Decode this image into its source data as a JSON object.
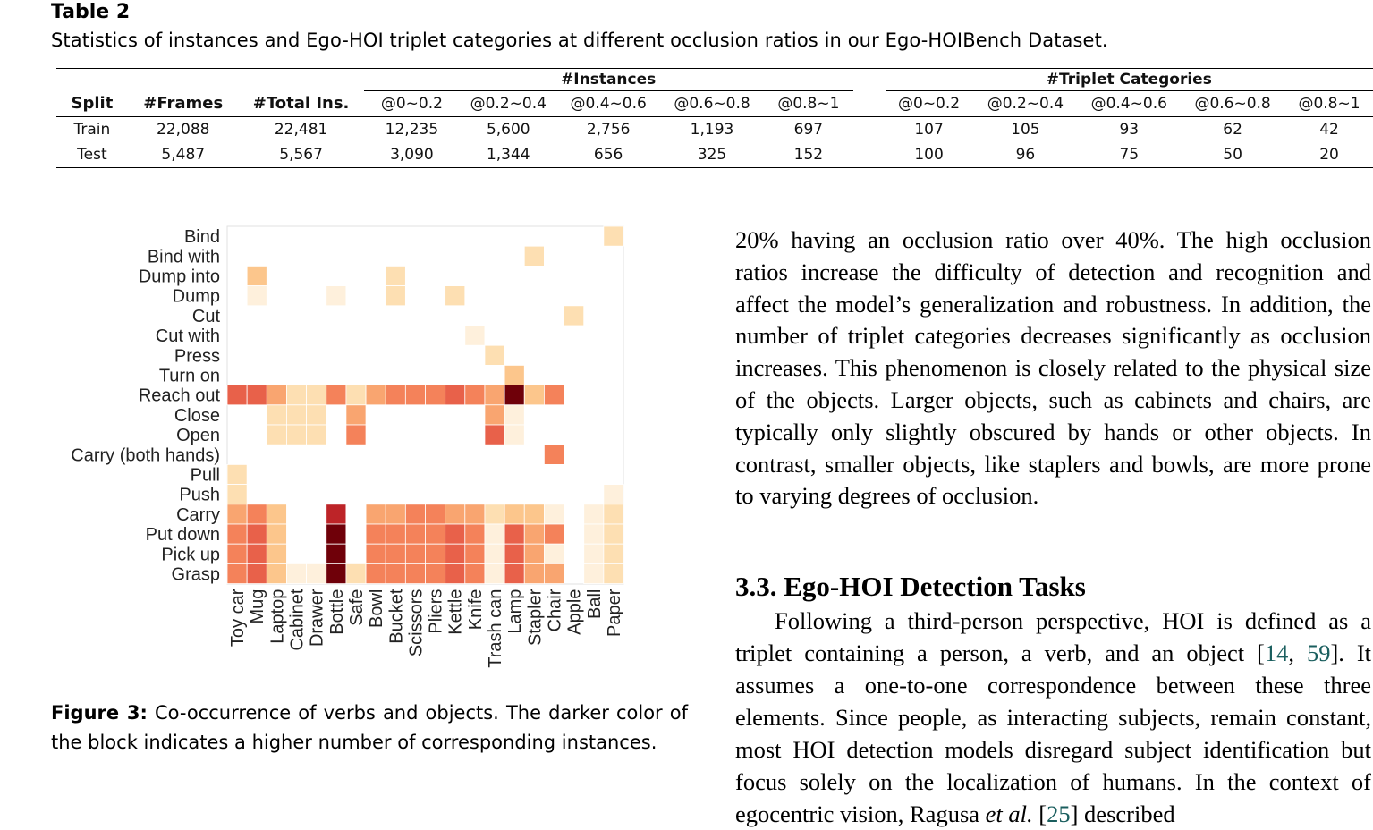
{
  "table": {
    "label": "Table 2",
    "caption": "Statistics of instances and Ego-HOI triplet categories at different occlusion ratios in our Ego-HOIBench Dataset.",
    "group_instances": "#Instances",
    "group_triplets": "#Triplet Categories",
    "col_split": "Split",
    "col_frames": "#Frames",
    "col_total": "#Total Ins.",
    "ratios": [
      "@0~0.2",
      "@0.2~0.4",
      "@0.4~0.6",
      "@0.6~0.8",
      "@0.8~1"
    ],
    "rows": [
      {
        "split": "Train",
        "frames": "22,088",
        "total": "22,481",
        "instances": [
          "12,235",
          "5,600",
          "2,756",
          "1,193",
          "697"
        ],
        "triplets": [
          "107",
          "105",
          "93",
          "62",
          "42"
        ]
      },
      {
        "split": "Test",
        "frames": "5,487",
        "total": "5,567",
        "instances": [
          "3,090",
          "1,344",
          "656",
          "325",
          "152"
        ],
        "triplets": [
          "100",
          "96",
          "75",
          "50",
          "20"
        ]
      }
    ]
  },
  "chart_data": {
    "type": "heatmap",
    "rows": [
      "Bind",
      "Bind with",
      "Dump into",
      "Dump",
      "Cut",
      "Cut with",
      "Press",
      "Turn on",
      "Reach out",
      "Close",
      "Open",
      "Carry (both hands)",
      "Pull",
      "Push",
      "Carry",
      "Put down",
      "Pick up",
      "Grasp"
    ],
    "columns": [
      "Toy car",
      "Mug",
      "Laptop",
      "Cabinet",
      "Drawer",
      "Bottle",
      "Safe",
      "Bowl",
      "Bucket",
      "Scissors",
      "Pliers",
      "Kettle",
      "Knife",
      "Trash can",
      "Lamp",
      "Stapler",
      "Chair",
      "Apple",
      "Ball",
      "Paper"
    ],
    "intensity_scale": "0 (lightest) to 10 (darkest); relative co-occurrence count",
    "values": [
      [
        0,
        0,
        0,
        0,
        0,
        0,
        0,
        0,
        0,
        0,
        0,
        0,
        0,
        0,
        0,
        0,
        0,
        0,
        0,
        2
      ],
      [
        0,
        0,
        0,
        0,
        0,
        0,
        0,
        0,
        0,
        0,
        0,
        0,
        0,
        0,
        0,
        2,
        0,
        0,
        0,
        0
      ],
      [
        0,
        3,
        0,
        0,
        0,
        0,
        0,
        0,
        2,
        0,
        0,
        0,
        0,
        0,
        0,
        0,
        0,
        0,
        0,
        0
      ],
      [
        0,
        1,
        0,
        0,
        0,
        1,
        0,
        0,
        2,
        0,
        0,
        2,
        0,
        0,
        0,
        0,
        0,
        0,
        0,
        0
      ],
      [
        0,
        0,
        0,
        0,
        0,
        0,
        0,
        0,
        0,
        0,
        0,
        0,
        0,
        0,
        0,
        0,
        0,
        2,
        0,
        0
      ],
      [
        0,
        0,
        0,
        0,
        0,
        0,
        0,
        0,
        0,
        0,
        0,
        0,
        1,
        0,
        0,
        0,
        0,
        0,
        0,
        0
      ],
      [
        0,
        0,
        0,
        0,
        0,
        0,
        0,
        0,
        0,
        0,
        0,
        0,
        0,
        2,
        0,
        0,
        0,
        0,
        0,
        0
      ],
      [
        0,
        0,
        0,
        0,
        0,
        0,
        0,
        0,
        0,
        0,
        0,
        0,
        0,
        0,
        3,
        0,
        0,
        0,
        0,
        0
      ],
      [
        6,
        6,
        4,
        2,
        2,
        5,
        2,
        4,
        5,
        5,
        5,
        6,
        5,
        4,
        10,
        3,
        5,
        0,
        0,
        0
      ],
      [
        0,
        0,
        2,
        2,
        2,
        0,
        4,
        0,
        0,
        0,
        0,
        0,
        0,
        4,
        1,
        0,
        0,
        0,
        0,
        0
      ],
      [
        0,
        0,
        2,
        2,
        2,
        0,
        5,
        0,
        0,
        0,
        0,
        0,
        0,
        6,
        1,
        0,
        0,
        0,
        0,
        0
      ],
      [
        0,
        0,
        0,
        0,
        0,
        0,
        0,
        0,
        0,
        0,
        0,
        0,
        0,
        0,
        0,
        0,
        5,
        0,
        0,
        0
      ],
      [
        2,
        0,
        0,
        0,
        0,
        0,
        0,
        0,
        0,
        0,
        0,
        0,
        0,
        0,
        0,
        0,
        0,
        0,
        0,
        0
      ],
      [
        2,
        0,
        0,
        0,
        0,
        0,
        0,
        0,
        0,
        0,
        0,
        0,
        0,
        0,
        0,
        0,
        0,
        0,
        0,
        1
      ],
      [
        4,
        5,
        3,
        0,
        0,
        8,
        0,
        4,
        4,
        5,
        5,
        4,
        4,
        2,
        3,
        3,
        1,
        0,
        1,
        2
      ],
      [
        5,
        6,
        3,
        0,
        0,
        10,
        0,
        5,
        5,
        5,
        5,
        6,
        5,
        1,
        6,
        4,
        5,
        0,
        1,
        2
      ],
      [
        5,
        6,
        3,
        0,
        0,
        10,
        0,
        5,
        5,
        5,
        5,
        6,
        5,
        1,
        6,
        4,
        1,
        0,
        1,
        2
      ],
      [
        5,
        6,
        3,
        1,
        1,
        10,
        2,
        5,
        5,
        5,
        5,
        6,
        5,
        1,
        6,
        4,
        4,
        0,
        1,
        2
      ]
    ]
  },
  "figure": {
    "label": "Figure 3:",
    "caption": "Co-occurrence of verbs and objects. The darker color of the block indicates a higher number of corresponding instances."
  },
  "body": {
    "para1": "20% having an occlusion ratio over 40%. The high occlusion ratios increase the difficulty of detection and recognition and affect the model’s generalization and robustness. In addition, the number of triplet categories decreases significantly as occlusion increases. This phenomenon is closely related to the physical size of the objects. Larger objects, such as cabinets and chairs, are typically only slightly obscured by hands or other objects. In contrast, smaller objects, like staplers and bowls, are more prone to varying degrees of occlusion.",
    "section_heading": "3.3.  Ego-HOI Detection Tasks",
    "para2_a": "Following a third-person perspective, HOI is defined as a triplet containing a person, a verb, and an object [",
    "cite1": "14",
    "para2_sep": ", ",
    "cite2": "59",
    "para2_b": "]. It assumes a one-to-one correspondence between these three elements. Since people, as interacting subjects, remain constant, most HOI detection models disregard subject identification but focus solely on the localization of humans. In the context of egocentric vision, Ragusa ",
    "etal": "et al.",
    "para2_c": " [",
    "cite3": "25",
    "para2_d": "] described"
  }
}
